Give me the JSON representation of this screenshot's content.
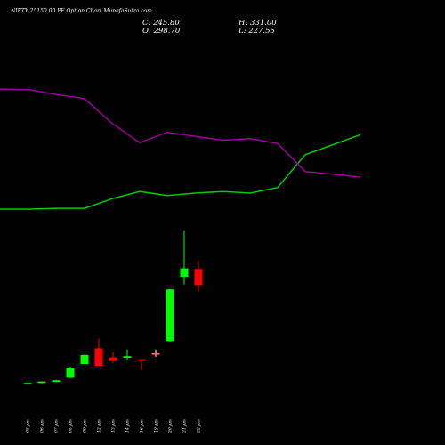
{
  "header": {
    "title": "NIFTY 25150.00 PE Option Chart MunafaSutra.com",
    "close_label": "C: 245.80",
    "open_label": "O: 298.70",
    "high_label": "H: 331.00",
    "low_label": "L: 227.55"
  },
  "colors": {
    "background": "#000000",
    "bullish": "#00ff00",
    "bearish": "#ff0000",
    "upper_line": "#00cc00",
    "lower_line": "#990099",
    "neutral_tick": "#ff6666"
  },
  "chart_data": [
    {
      "type": "candlestick",
      "title": "NIFTY 25150.00 PE Option Chart MunafaSutra.com",
      "categories": [
        "05 Jun",
        "06 Jun",
        "07 Jun",
        "08 Jun",
        "09 Jun",
        "12 Jun",
        "13 Jun",
        "14 Jun",
        "16 Jun",
        "19 Jun",
        "20 Jun",
        "21 Jun",
        "22 Jun"
      ],
      "ohlc": [
        {
          "open": 4,
          "high": 6,
          "low": 3,
          "close": 5.5
        },
        {
          "open": 6,
          "high": 8,
          "low": 5,
          "close": 8
        },
        {
          "open": 9,
          "high": 11,
          "low": 8,
          "close": 10
        },
        {
          "open": 14,
          "high": 33,
          "low": 14,
          "close": 31
        },
        {
          "open": 37,
          "high": 53,
          "low": 37,
          "close": 52
        },
        {
          "open": 63,
          "high": 79,
          "low": 34,
          "close": 34
        },
        {
          "open": 48,
          "high": 57,
          "low": 38,
          "close": 42
        },
        {
          "open": 48,
          "high": 61,
          "low": 43,
          "close": 50
        },
        {
          "open": 45,
          "high": 45,
          "low": 27,
          "close": 43
        },
        {
          "open": 55,
          "high": 61,
          "low": 49,
          "close": 55
        },
        {
          "open": 75,
          "high": 161,
          "low": 74,
          "close": 161
        },
        {
          "open": 182,
          "high": 259,
          "low": 169,
          "close": 196
        },
        {
          "open": 195,
          "high": 208,
          "low": 157,
          "close": 168
        }
      ]
    },
    {
      "type": "line",
      "title": "",
      "x": [
        "05 Jun",
        "06 Jun",
        "07 Jun",
        "08 Jun",
        "09 Jun",
        "12 Jun",
        "13 Jun",
        "14 Jun",
        "16 Jun",
        "19 Jun",
        "20 Jun",
        "21 Jun",
        "22 Jun"
      ],
      "series": [
        {
          "color": "#00cc00",
          "values": [
            0,
            0,
            1,
            1,
            13,
            22,
            17,
            20,
            22,
            20,
            27,
            68,
            93
          ]
        },
        {
          "color": "#990099",
          "values": [
            150,
            149,
            143,
            138,
            107,
            83,
            96,
            91,
            86,
            88,
            82,
            47,
            40
          ]
        }
      ]
    }
  ]
}
